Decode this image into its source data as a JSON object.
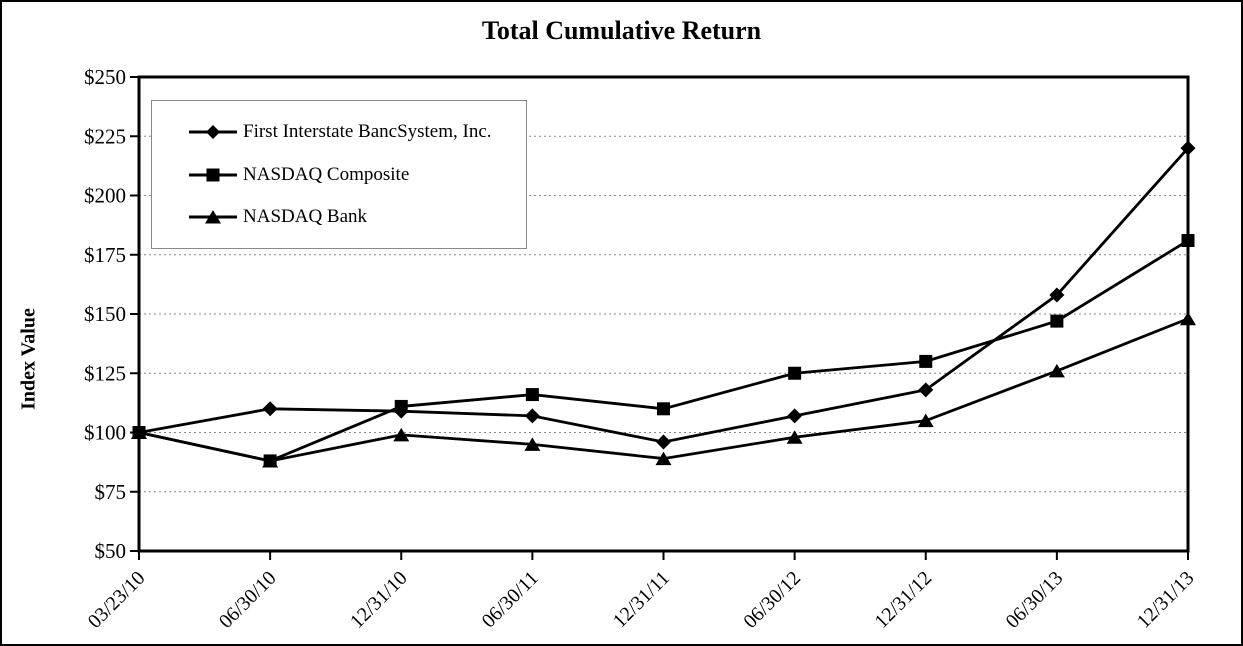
{
  "chart_data": {
    "type": "line",
    "title": "Total Cumulative Return",
    "xlabel": "",
    "ylabel": "Index Value",
    "x_categories": [
      "03/23/10",
      "06/30/10",
      "12/31/10",
      "06/30/11",
      "12/31/11",
      "06/30/12",
      "12/31/12",
      "06/30/13",
      "12/31/13"
    ],
    "y_tick_labels": [
      "$250",
      "$225",
      "$200",
      "$175",
      "$150",
      "$125",
      "$100",
      "$75",
      "$50"
    ],
    "ylim": [
      50,
      250
    ],
    "y_tick_step": 25,
    "grid": "horizontal-dashed",
    "legend_position": "inside-top-left",
    "series": [
      {
        "name": "First Interstate BancSystem, Inc.",
        "marker": "diamond",
        "values": [
          100,
          110,
          109,
          107,
          96,
          107,
          118,
          158,
          220
        ]
      },
      {
        "name": "NASDAQ Composite",
        "marker": "square",
        "values": [
          100,
          88,
          111,
          116,
          110,
          125,
          130,
          147,
          181
        ]
      },
      {
        "name": "NASDAQ Bank",
        "marker": "triangle",
        "values": [
          100,
          88,
          99,
          95,
          89,
          98,
          105,
          126,
          148
        ]
      }
    ],
    "colors": {
      "series": "#000000",
      "axis": "#000000",
      "gridline": "#888888",
      "legend_border": "#888888",
      "background": "#ffffff"
    }
  }
}
